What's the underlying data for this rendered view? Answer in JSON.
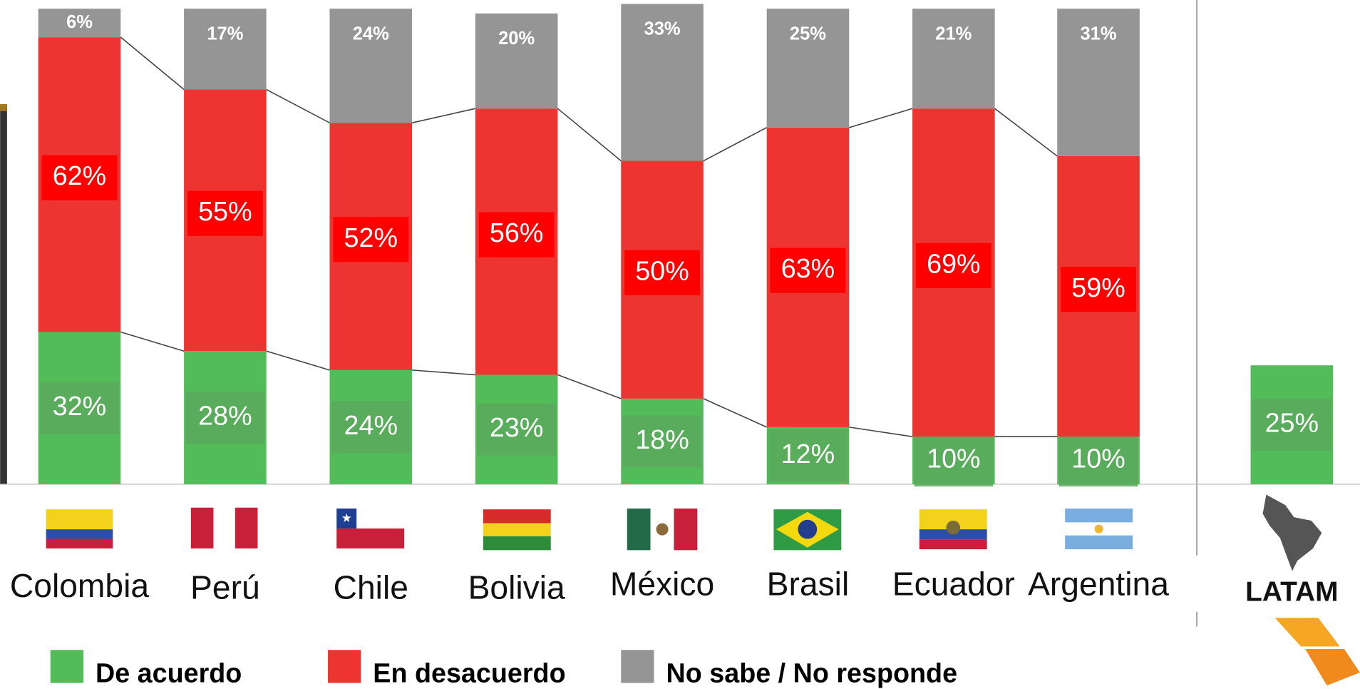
{
  "chart_data": {
    "type": "bar",
    "stacked": true,
    "categories": [
      "Colombia",
      "Perú",
      "Chile",
      "Bolivia",
      "México",
      "Brasil",
      "Ecuador",
      "Argentina",
      "LATAM"
    ],
    "ylim": [
      0,
      100
    ],
    "series": [
      {
        "name": "De acuerdo",
        "color": "#52bd58",
        "values": [
          32,
          28,
          24,
          23,
          18,
          12,
          10,
          10,
          25
        ],
        "value_labels": [
          "32%",
          "28%",
          "24%",
          "23%",
          "18%",
          "12%",
          "10%",
          "10%",
          "25%"
        ]
      },
      {
        "name": "En desacuerdo",
        "color": "#ee3430",
        "values": [
          62,
          55,
          52,
          56,
          50,
          63,
          69,
          59,
          null
        ],
        "value_labels": [
          "62%",
          "55%",
          "52%",
          "56%",
          "50%",
          "63%",
          "69%",
          "59%",
          null
        ]
      },
      {
        "name": "No sabe / No responde",
        "color": "#959595",
        "values": [
          6,
          17,
          24,
          20,
          33,
          25,
          21,
          31,
          null
        ],
        "value_labels": [
          "6%",
          "17%",
          "24%",
          "20%",
          "33%",
          "25%",
          "21%",
          "31%",
          null
        ]
      }
    ]
  }
}
